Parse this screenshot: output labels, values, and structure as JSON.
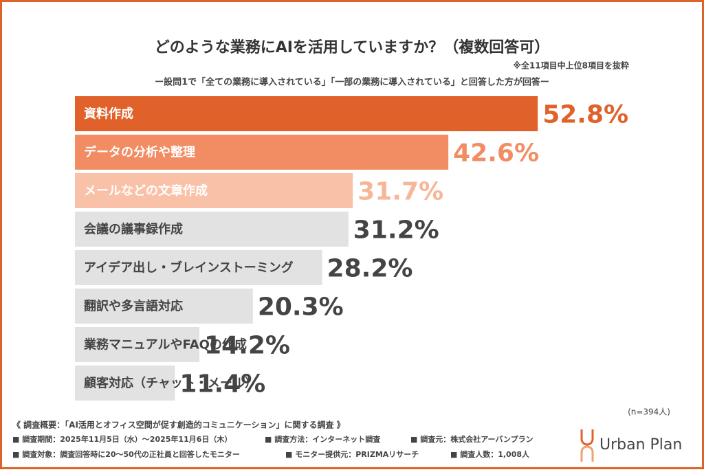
{
  "chart_data": {
    "type": "bar",
    "orientation": "horizontal",
    "title": "どのような業務にAIを活用していますか？（複数回答可）",
    "note": "※全11項目中上位8項目を抜粋",
    "subtitle": "ー設問1で「全ての業務に導入されている」「一部の業務に導入されている」と回答した方が回答ー",
    "categories": [
      "資料作成",
      "データの分析や整理",
      "メールなどの文章作成",
      "会議の議事録作成",
      "アイデア出し・ブレインストーミング",
      "翻訳や多言語対応",
      "業務マニュアルやFAQの作成",
      "顧客対応（チャット・メール）"
    ],
    "values": [
      52.8,
      42.6,
      31.7,
      31.2,
      28.2,
      20.3,
      14.2,
      11.4
    ],
    "value_labels": [
      "52.8%",
      "42.6%",
      "31.7%",
      "31.2%",
      "28.2%",
      "20.3%",
      "14.2%",
      "11.4%"
    ],
    "colors": [
      "#e0622a",
      "#f28c63",
      "#f9c2a8",
      "#e2e2e2",
      "#e2e2e2",
      "#e2e2e2",
      "#e2e2e2",
      "#e2e2e2"
    ],
    "label_colors": [
      "#e0622a",
      "#f28c63",
      "#f7b697",
      "#444444",
      "#444444",
      "#444444",
      "#444444",
      "#444444"
    ],
    "category_text_colors": [
      "#ffffff",
      "#ffffff",
      "#ffffff",
      "#444444",
      "#444444",
      "#444444",
      "#444444",
      "#444444"
    ],
    "sample_note": "(n=394人)",
    "footer": {
      "heading": "《 調査概要：「AI活用とオフィス空間が促す創造的コミュニケーション」に関する調査 》",
      "rows": [
        [
          "■ 調査期間：2025年11月5日（水）～2025年11月6日（木）",
          "■ 調査方法：インターネット調査",
          "■ 調査元：株式会社アーバンプラン"
        ],
        [
          "■ 調査対象：調査回答時に20～50代の正社員と回答したモニター",
          "■ モニター提供元：PRIZMAリサーチ",
          "■ 調査人数：1,008人"
        ]
      ]
    },
    "logo": "Urban Plan"
  }
}
